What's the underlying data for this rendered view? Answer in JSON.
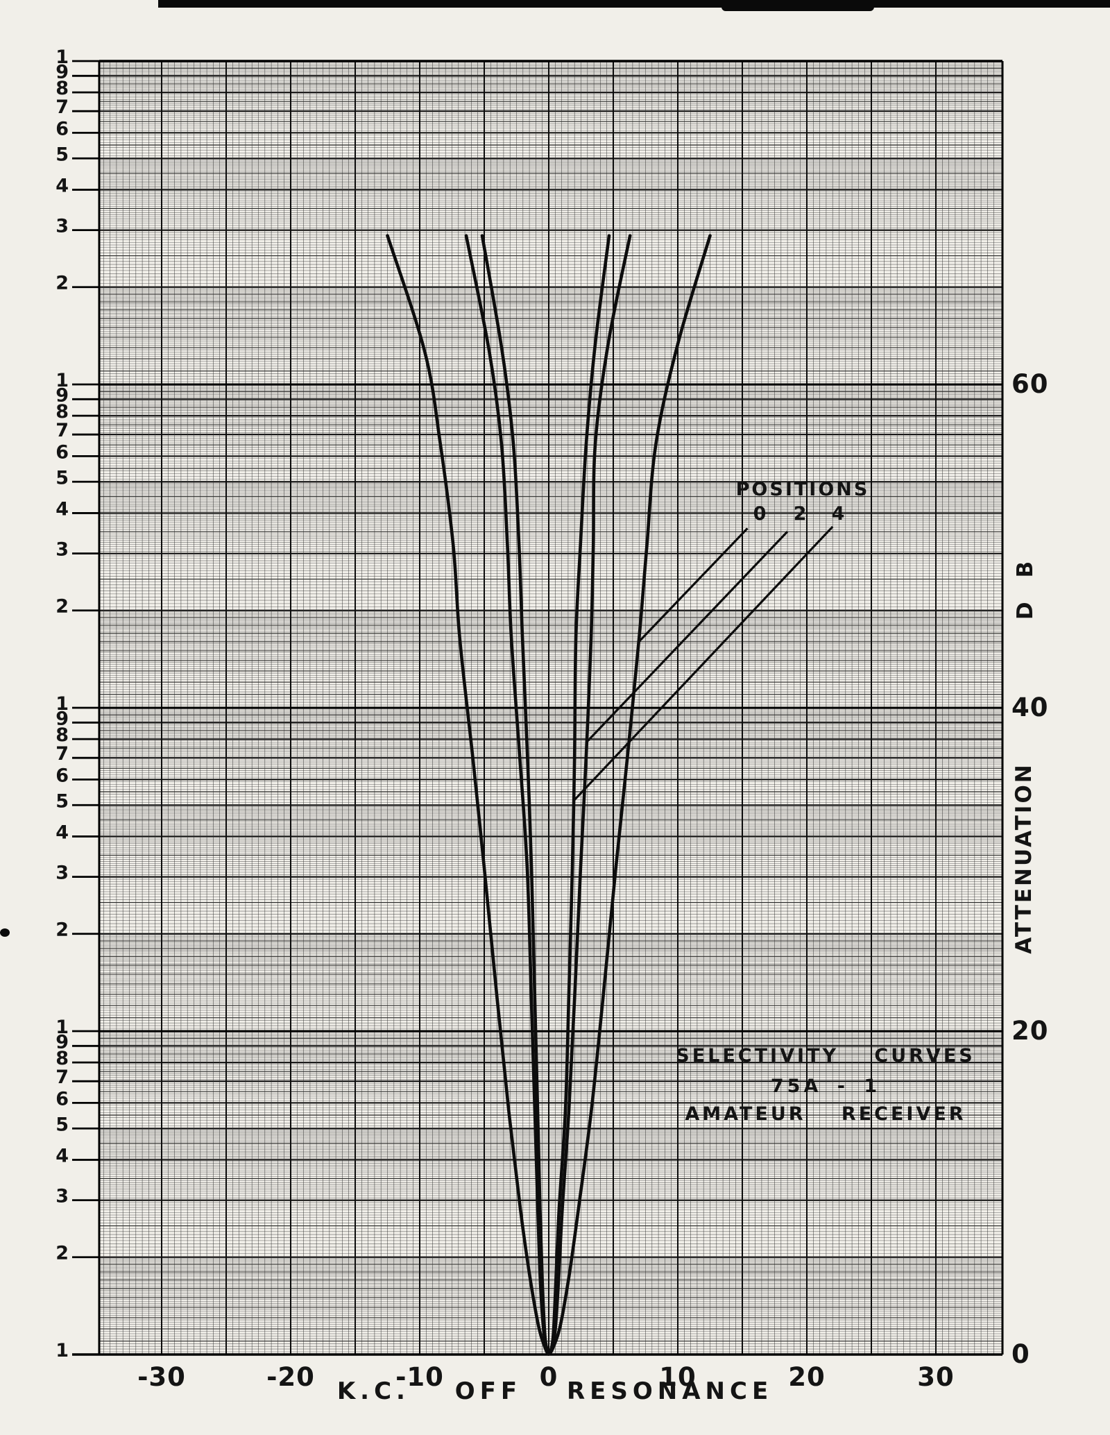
{
  "paper_color": "#f1efe9",
  "ink_color": "#141414",
  "scan_artifacts": {
    "top_bar": "black strip along top edge of scan"
  },
  "chart_data": {
    "type": "line",
    "title": "SELECTIVITY CURVES 75A-1 AMATEUR RECEIVER",
    "title_block": [
      "SELECTIVITY CURVES",
      "75A - 1",
      "AMATEUR RECEIVER"
    ],
    "x_axis": {
      "label": "K.C. OFF RESONANCE",
      "tick_values": [
        -30,
        -20,
        -10,
        0,
        10,
        20,
        30
      ],
      "range_kc": [
        -35,
        35
      ],
      "minor_step_kc": 0.5,
      "major_step_kc": 5
    },
    "y_axis": {
      "scale": "log",
      "cycles": 4,
      "db_per_cycle": 20,
      "right_tick_labels": [
        "60",
        "40",
        "20",
        "0"
      ],
      "right_tick_values_db": [
        60,
        40,
        20,
        0
      ],
      "unit_label": "D B",
      "axis_label": "ATTENUATION",
      "left_cycle_labels": [
        "1",
        "9",
        "8",
        "7",
        "6",
        "5",
        "4",
        "3",
        "2"
      ],
      "left_bottom_label": "1",
      "ylim_db": [
        0,
        80
      ]
    },
    "legend": {
      "heading": "POSITIONS",
      "entries": [
        "0",
        "2",
        "4"
      ]
    },
    "series": [
      {
        "name": "position-0-crystal-out-widest",
        "position": "0",
        "points_kc_db": [
          [
            -12.5,
            69.2
          ],
          [
            -9.6,
            62.0
          ],
          [
            -8.4,
            56.3
          ],
          [
            -7.4,
            50.0
          ],
          [
            -6.9,
            44.3
          ],
          [
            -5.9,
            37.0
          ],
          [
            -5.0,
            30.1
          ],
          [
            -4.0,
            22.0
          ],
          [
            -3.1,
            15.1
          ],
          [
            -2.2,
            9.0
          ],
          [
            -1.5,
            5.0
          ],
          [
            -0.8,
            1.8
          ],
          [
            -0.3,
            0.45
          ],
          [
            0,
            0.05
          ],
          [
            0.35,
            0.45
          ],
          [
            0.9,
            1.8
          ],
          [
            1.6,
            5.0
          ],
          [
            2.3,
            9.0
          ],
          [
            3.3,
            15.1
          ],
          [
            4.2,
            22.0
          ],
          [
            5.2,
            30.1
          ],
          [
            6.1,
            37.0
          ],
          [
            7.0,
            44.3
          ],
          [
            7.6,
            50.0
          ],
          [
            8.3,
            56.3
          ],
          [
            10.0,
            62.5
          ],
          [
            12.5,
            69.2
          ]
        ]
      },
      {
        "name": "position-2-medium",
        "position": "2",
        "points_kc_db": [
          [
            -6.4,
            69.2
          ],
          [
            -4.6,
            62.0
          ],
          [
            -3.66,
            56.3
          ],
          [
            -3.2,
            50.0
          ],
          [
            -2.9,
            44.3
          ],
          [
            -2.25,
            37.0
          ],
          [
            -1.67,
            30.1
          ],
          [
            -1.35,
            22.0
          ],
          [
            -1.08,
            15.1
          ],
          [
            -0.85,
            9.0
          ],
          [
            -0.65,
            4.5
          ],
          [
            -0.4,
            1.5
          ],
          [
            -0.15,
            0.3
          ],
          [
            0,
            0.05
          ],
          [
            0.2,
            0.3
          ],
          [
            0.5,
            1.5
          ],
          [
            0.75,
            4.5
          ],
          [
            1.05,
            9.0
          ],
          [
            1.56,
            15.1
          ],
          [
            2.0,
            22.0
          ],
          [
            2.47,
            30.1
          ],
          [
            2.9,
            37.0
          ],
          [
            3.28,
            44.3
          ],
          [
            3.45,
            50.0
          ],
          [
            3.6,
            56.3
          ],
          [
            4.6,
            62.5
          ],
          [
            6.3,
            69.2
          ]
        ]
      },
      {
        "name": "position-4-sharpest",
        "position": "4",
        "points_kc_db": [
          [
            -5.16,
            69.2
          ],
          [
            -3.6,
            62.0
          ],
          [
            -2.74,
            56.3
          ],
          [
            -2.3,
            50.0
          ],
          [
            -2.04,
            44.3
          ],
          [
            -1.65,
            37.0
          ],
          [
            -1.34,
            30.1
          ],
          [
            -1.08,
            22.0
          ],
          [
            -0.86,
            15.1
          ],
          [
            -0.68,
            9.0
          ],
          [
            -0.5,
            4.5
          ],
          [
            -0.3,
            1.2
          ],
          [
            -0.1,
            0.2
          ],
          [
            0,
            0.02
          ],
          [
            0.15,
            0.25
          ],
          [
            0.35,
            1.2
          ],
          [
            0.55,
            4.5
          ],
          [
            0.8,
            9.0
          ],
          [
            1.29,
            15.1
          ],
          [
            1.55,
            22.0
          ],
          [
            1.83,
            30.1
          ],
          [
            2.0,
            37.0
          ],
          [
            2.1,
            44.3
          ],
          [
            2.45,
            50.0
          ],
          [
            2.9,
            56.3
          ],
          [
            3.6,
            62.5
          ],
          [
            4.68,
            69.2
          ]
        ]
      }
    ],
    "leaders": [
      {
        "label": "0",
        "from_kc_db": [
          15.4,
          51.1
        ],
        "to_kc_db": [
          7.0,
          44.1
        ]
      },
      {
        "label": "2",
        "from_kc_db": [
          18.5,
          50.9
        ],
        "to_kc_db": [
          2.96,
          37.9
        ]
      },
      {
        "label": "4",
        "from_kc_db": [
          22.0,
          51.2
        ],
        "to_kc_db": [
          1.99,
          34.3
        ]
      }
    ],
    "grid": "dense 4-cycle semi-log graph paper, log vertical x linear horizontal"
  }
}
